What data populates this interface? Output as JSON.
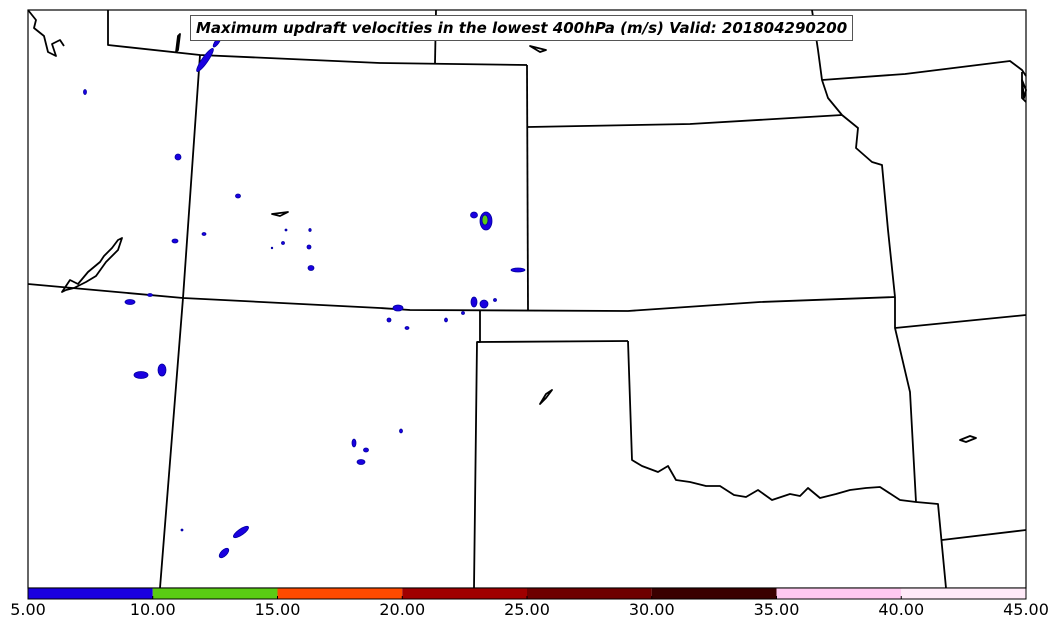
{
  "map": {
    "title": "Maximum updraft velocities in the lowest 400hPa (m/s) Valid: 201804290200"
  },
  "colorbar": {
    "bins": [
      {
        "low": 5,
        "high": 10,
        "color": "#1a00e0"
      },
      {
        "low": 10,
        "high": 15,
        "color": "#5acc14"
      },
      {
        "low": 15,
        "high": 20,
        "color": "#ff4a00"
      },
      {
        "low": 20,
        "high": 25,
        "color": "#a00000"
      },
      {
        "low": 25,
        "high": 30,
        "color": "#6e0000"
      },
      {
        "low": 30,
        "high": 35,
        "color": "#3a0000"
      },
      {
        "low": 35,
        "high": 40,
        "color": "#ffc8f0"
      },
      {
        "low": 40,
        "high": 45,
        "color": "#ffeaf8"
      }
    ],
    "ticks": [
      "5.00",
      "10.00",
      "15.00",
      "20.00",
      "25.00",
      "30.00",
      "35.00",
      "40.00",
      "45.00"
    ]
  },
  "colors": {
    "boundary": "#000000",
    "updraft_low": "#1a00e0",
    "updraft_mid": "#5acc14"
  }
}
